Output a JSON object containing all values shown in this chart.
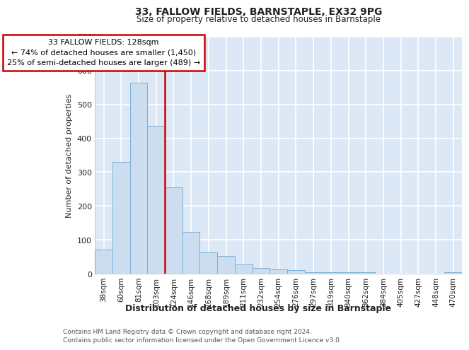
{
  "title1": "33, FALLOW FIELDS, BARNSTAPLE, EX32 9PG",
  "title2": "Size of property relative to detached houses in Barnstaple",
  "xlabel": "Distribution of detached houses by size in Barnstaple",
  "ylabel": "Number of detached properties",
  "categories": [
    "38sqm",
    "60sqm",
    "81sqm",
    "103sqm",
    "124sqm",
    "146sqm",
    "168sqm",
    "189sqm",
    "211sqm",
    "232sqm",
    "254sqm",
    "276sqm",
    "297sqm",
    "319sqm",
    "340sqm",
    "362sqm",
    "384sqm",
    "405sqm",
    "427sqm",
    "448sqm",
    "470sqm"
  ],
  "values": [
    72,
    330,
    565,
    437,
    255,
    123,
    62,
    52,
    28,
    17,
    13,
    10,
    4,
    4,
    4,
    4,
    0,
    0,
    0,
    0,
    5
  ],
  "bar_color": "#ccddf0",
  "bar_edge_color": "#7ab0d8",
  "subject_line_color": "#cc0000",
  "subject_vline_x": 3.5,
  "annotation_line1": "33 FALLOW FIELDS: 128sqm",
  "annotation_line2": "← 74% of detached houses are smaller (1,450)",
  "annotation_line3": "25% of semi-detached houses are larger (489) →",
  "annotation_box_edge_color": "#cc0000",
  "ylim_max": 700,
  "yticks": [
    0,
    100,
    200,
    300,
    400,
    500,
    600,
    700
  ],
  "footer1": "Contains HM Land Registry data © Crown copyright and database right 2024.",
  "footer2": "Contains public sector information licensed under the Open Government Licence v3.0.",
  "plot_bg_color": "#dce8f5"
}
